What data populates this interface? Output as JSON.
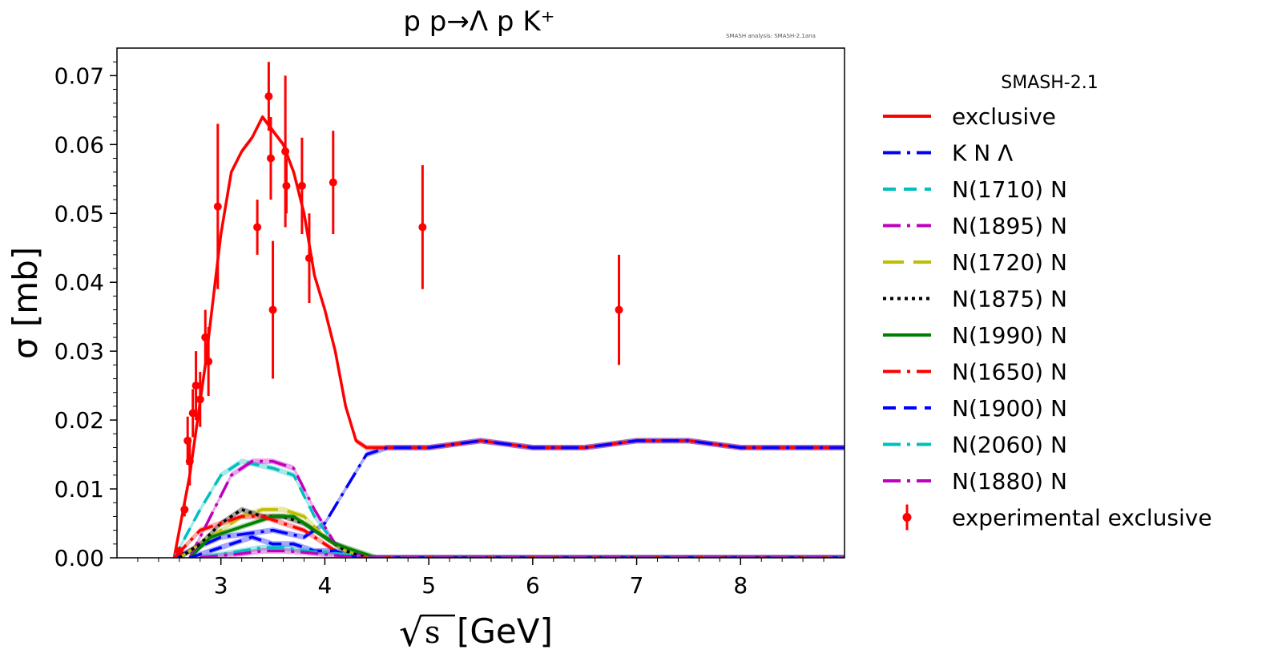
{
  "chart_data": {
    "type": "line",
    "title": "p p→Λ p K⁺",
    "annotation": "SMASH analysis: SMASH-2.1ana",
    "xlabel_root": "s",
    "xlabel_unit": "[GeV]",
    "ylabel": "σ [mb]",
    "xlim": [
      2.0,
      9.0
    ],
    "ylim": [
      0.0,
      0.074
    ],
    "x_ticks": [
      3,
      4,
      5,
      6,
      7,
      8
    ],
    "x_tick_labels": [
      "3",
      "4",
      "5",
      "6",
      "7",
      "8"
    ],
    "y_ticks": [
      0.0,
      0.01,
      0.02,
      0.03,
      0.04,
      0.05,
      0.06,
      0.07
    ],
    "y_tick_labels": [
      "0.00",
      "0.01",
      "0.02",
      "0.03",
      "0.04",
      "0.05",
      "0.06",
      "0.07"
    ],
    "grid": false,
    "legend_title": "SMASH-2.1",
    "legend_position": "outside-right",
    "series": [
      {
        "name": "exclusive",
        "color": "#ff0000",
        "dash": "solid",
        "x": [
          2.55,
          2.7,
          2.85,
          3.0,
          3.1,
          3.2,
          3.3,
          3.4,
          3.5,
          3.6,
          3.7,
          3.8,
          3.9,
          4.0,
          4.1,
          4.2,
          4.3,
          4.4,
          4.6,
          4.8,
          5.0,
          5.5,
          6.0,
          6.5,
          7.0,
          7.5,
          8.0,
          8.5,
          9.0
        ],
        "y": [
          0.0,
          0.012,
          0.028,
          0.047,
          0.056,
          0.059,
          0.061,
          0.064,
          0.062,
          0.06,
          0.056,
          0.05,
          0.041,
          0.036,
          0.03,
          0.022,
          0.017,
          0.016,
          0.016,
          0.016,
          0.016,
          0.017,
          0.016,
          0.016,
          0.017,
          0.017,
          0.016,
          0.016,
          0.016
        ]
      },
      {
        "name": "K N Λ",
        "color": "#0000ff",
        "dash": "long-short",
        "x": [
          2.55,
          3.0,
          3.5,
          3.8,
          4.0,
          4.2,
          4.4,
          4.6,
          4.8,
          5.0,
          5.5,
          6.0,
          6.5,
          7.0,
          7.5,
          8.0,
          8.5,
          9.0
        ],
        "y": [
          0.0,
          0.003,
          0.004,
          0.003,
          0.005,
          0.01,
          0.015,
          0.016,
          0.016,
          0.016,
          0.017,
          0.016,
          0.016,
          0.017,
          0.017,
          0.016,
          0.016,
          0.016
        ]
      },
      {
        "name": "N(1710) N",
        "color": "#00bfbf",
        "dash": "dashed",
        "x": [
          2.55,
          2.8,
          3.0,
          3.2,
          3.5,
          3.7,
          3.9,
          4.1,
          4.4,
          9.0
        ],
        "y": [
          0.0,
          0.007,
          0.012,
          0.014,
          0.013,
          0.012,
          0.006,
          0.002,
          0.0,
          0.0
        ]
      },
      {
        "name": "N(1895) N",
        "color": "#bf00bf",
        "dash": "long-short",
        "x": [
          2.7,
          2.9,
          3.1,
          3.3,
          3.5,
          3.7,
          3.9,
          4.1,
          4.4,
          9.0
        ],
        "y": [
          0.0,
          0.006,
          0.012,
          0.014,
          0.014,
          0.013,
          0.007,
          0.002,
          0.0,
          0.0
        ]
      },
      {
        "name": "N(1720) N",
        "color": "#bfbf00",
        "dash": "long-dashed",
        "x": [
          2.6,
          2.8,
          3.0,
          3.2,
          3.4,
          3.6,
          3.8,
          4.0,
          4.2,
          4.4,
          9.0
        ],
        "y": [
          0.0,
          0.002,
          0.004,
          0.006,
          0.007,
          0.007,
          0.006,
          0.003,
          0.001,
          0.0,
          0.0
        ]
      },
      {
        "name": "N(1875) N",
        "color": "#000000",
        "dash": "dotted",
        "x": [
          2.6,
          2.8,
          3.0,
          3.2,
          3.4,
          3.6,
          3.8,
          4.0,
          4.2,
          4.4,
          9.0
        ],
        "y": [
          0.0,
          0.002,
          0.005,
          0.007,
          0.006,
          0.006,
          0.005,
          0.003,
          0.001,
          0.0,
          0.0
        ]
      },
      {
        "name": "N(1990) N",
        "color": "#008000",
        "dash": "solid",
        "x": [
          2.7,
          2.9,
          3.1,
          3.3,
          3.5,
          3.7,
          3.9,
          4.1,
          4.3,
          4.5,
          9.0
        ],
        "y": [
          0.0,
          0.003,
          0.004,
          0.005,
          0.006,
          0.006,
          0.004,
          0.002,
          0.001,
          0.0,
          0.0
        ]
      },
      {
        "name": "N(1650) N",
        "color": "#ff0000",
        "dash": "long-short",
        "x": [
          2.55,
          2.8,
          3.0,
          3.2,
          3.4,
          3.6,
          3.8,
          4.0,
          4.2,
          9.0
        ],
        "y": [
          0.0,
          0.004,
          0.005,
          0.006,
          0.006,
          0.005,
          0.004,
          0.002,
          0.0,
          0.0
        ]
      },
      {
        "name": "N(1900) N",
        "color": "#0000ff",
        "dash": "dashed",
        "x": [
          2.7,
          2.9,
          3.1,
          3.3,
          3.5,
          3.7,
          3.9,
          4.1,
          4.3,
          9.0
        ],
        "y": [
          0.0,
          0.001,
          0.002,
          0.003,
          0.002,
          0.002,
          0.001,
          0.001,
          0.0,
          0.0
        ]
      },
      {
        "name": "N(2060) N",
        "color": "#00bfbf",
        "dash": "long-short",
        "x": [
          2.8,
          3.0,
          3.2,
          3.4,
          3.6,
          3.8,
          4.0,
          4.2,
          4.4,
          9.0
        ],
        "y": [
          0.0,
          0.0005,
          0.001,
          0.0015,
          0.0015,
          0.001,
          0.0008,
          0.0005,
          0.0,
          0.0
        ]
      },
      {
        "name": "N(1880) N",
        "color": "#bf00bf",
        "dash": "long-short",
        "x": [
          2.8,
          3.0,
          3.2,
          3.4,
          3.6,
          3.8,
          4.0,
          4.2,
          4.4,
          9.0
        ],
        "y": [
          0.0,
          0.0003,
          0.0006,
          0.001,
          0.001,
          0.0008,
          0.0005,
          0.0002,
          0.0,
          0.0
        ]
      }
    ],
    "experimental": {
      "name": "experimental exclusive",
      "color": "#ff0000",
      "points": [
        {
          "x": 2.6,
          "y": 0.001,
          "err": 0.0004
        },
        {
          "x": 2.65,
          "y": 0.007,
          "err": 0.001
        },
        {
          "x": 2.68,
          "y": 0.017,
          "err": 0.0035
        },
        {
          "x": 2.7,
          "y": 0.014,
          "err": 0.0035
        },
        {
          "x": 2.73,
          "y": 0.021,
          "err": 0.0035
        },
        {
          "x": 2.76,
          "y": 0.025,
          "err": 0.005
        },
        {
          "x": 2.8,
          "y": 0.023,
          "err": 0.004
        },
        {
          "x": 2.85,
          "y": 0.032,
          "err": 0.004
        },
        {
          "x": 2.88,
          "y": 0.0285,
          "err": 0.005
        },
        {
          "x": 2.97,
          "y": 0.051,
          "err": 0.012
        },
        {
          "x": 3.35,
          "y": 0.048,
          "err": 0.004
        },
        {
          "x": 3.46,
          "y": 0.067,
          "err": 0.005
        },
        {
          "x": 3.48,
          "y": 0.058,
          "err": 0.006
        },
        {
          "x": 3.5,
          "y": 0.036,
          "err": 0.01
        },
        {
          "x": 3.62,
          "y": 0.059,
          "err": 0.011
        },
        {
          "x": 3.63,
          "y": 0.054,
          "err": 0.004
        },
        {
          "x": 3.78,
          "y": 0.054,
          "err": 0.007
        },
        {
          "x": 3.85,
          "y": 0.0435,
          "err": 0.0065
        },
        {
          "x": 4.08,
          "y": 0.0545,
          "err": 0.0075
        },
        {
          "x": 4.94,
          "y": 0.048,
          "err": 0.009
        },
        {
          "x": 6.83,
          "y": 0.036,
          "err": 0.008
        }
      ]
    }
  }
}
